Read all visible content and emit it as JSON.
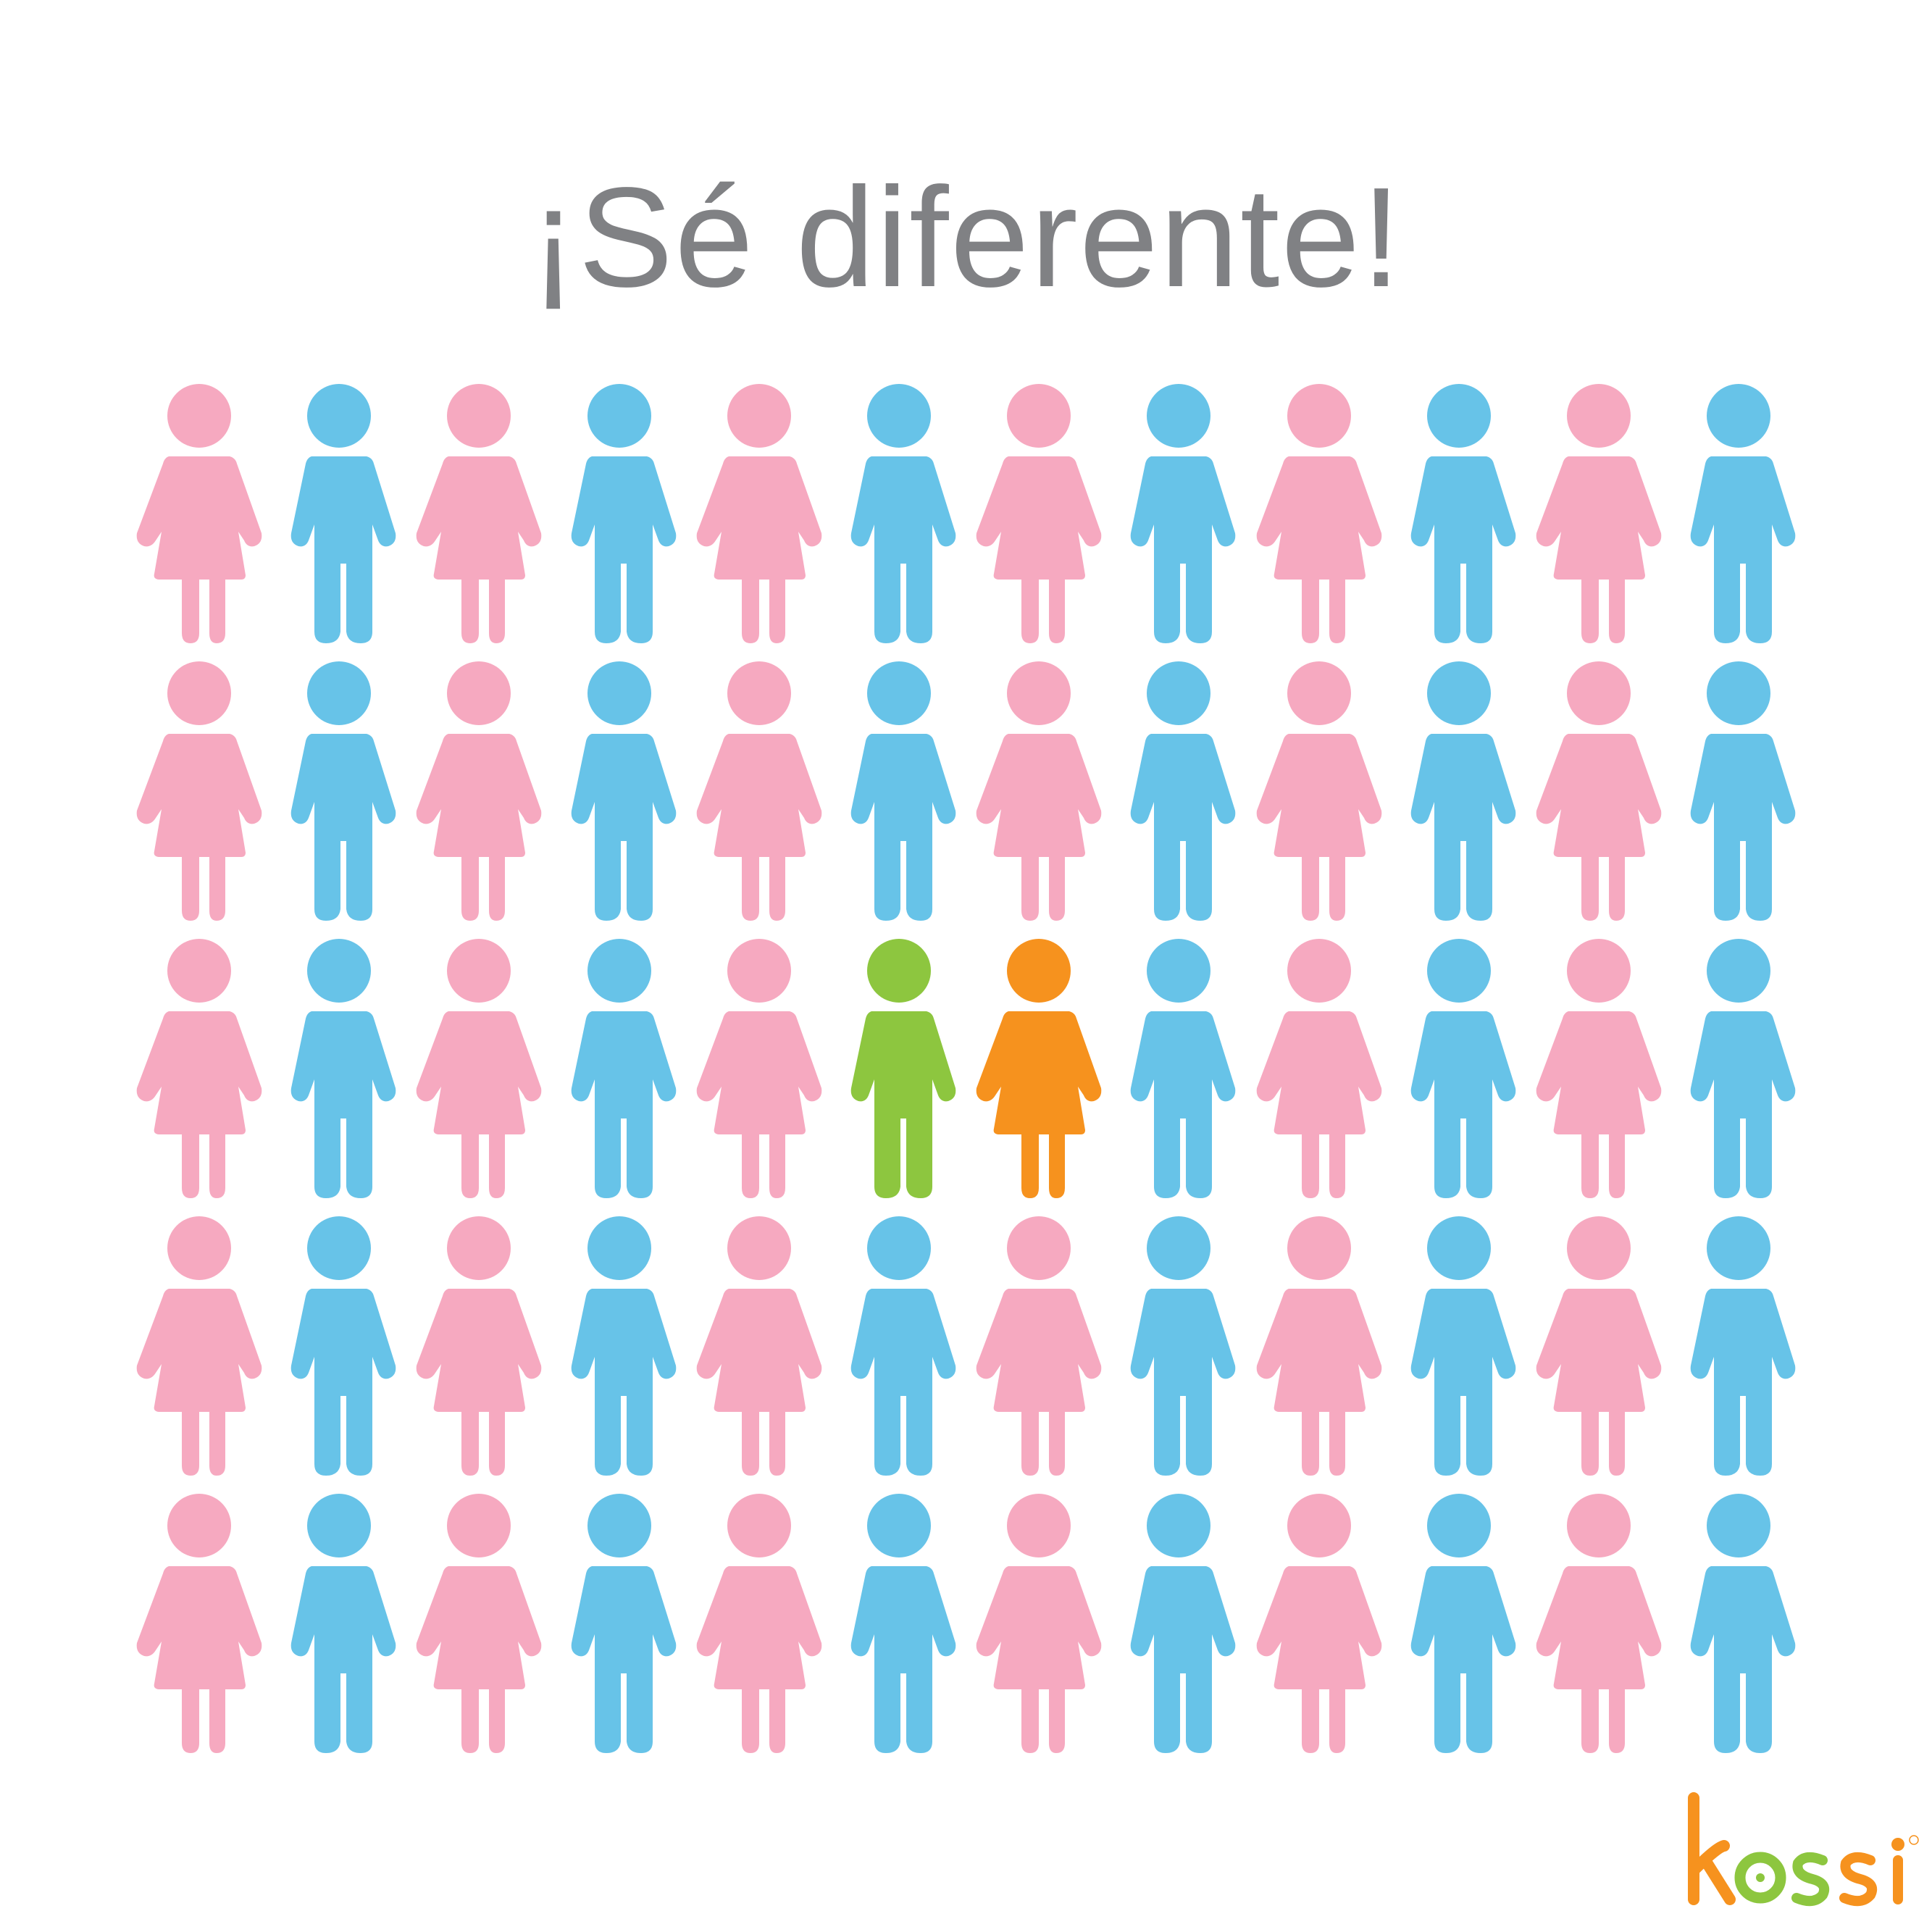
{
  "headline": "¡Sé diferente!",
  "brand": {
    "name": "kossi",
    "colors": {
      "orange": "#F6921E",
      "green": "#8DC63F"
    }
  },
  "palette": {
    "female": "#F6A9C0",
    "male": "#67C3E8",
    "highlight_male": "#8DC63F",
    "highlight_female": "#F6921E",
    "headline_text": "#808184"
  },
  "grid": {
    "rows": 5,
    "cols": 12,
    "pattern": [
      [
        "female",
        "male",
        "female",
        "male",
        "female",
        "male",
        "female",
        "male",
        "female",
        "male",
        "female",
        "male"
      ],
      [
        "female",
        "male",
        "female",
        "male",
        "female",
        "male",
        "female",
        "male",
        "female",
        "male",
        "female",
        "male"
      ],
      [
        "female",
        "male",
        "female",
        "male",
        "female",
        "highlight_male",
        "highlight_female",
        "male",
        "female",
        "male",
        "female",
        "male"
      ],
      [
        "female",
        "male",
        "female",
        "male",
        "female",
        "male",
        "female",
        "male",
        "female",
        "male",
        "female",
        "male"
      ],
      [
        "female",
        "male",
        "female",
        "male",
        "female",
        "male",
        "female",
        "male",
        "female",
        "male",
        "female",
        "male"
      ]
    ]
  }
}
